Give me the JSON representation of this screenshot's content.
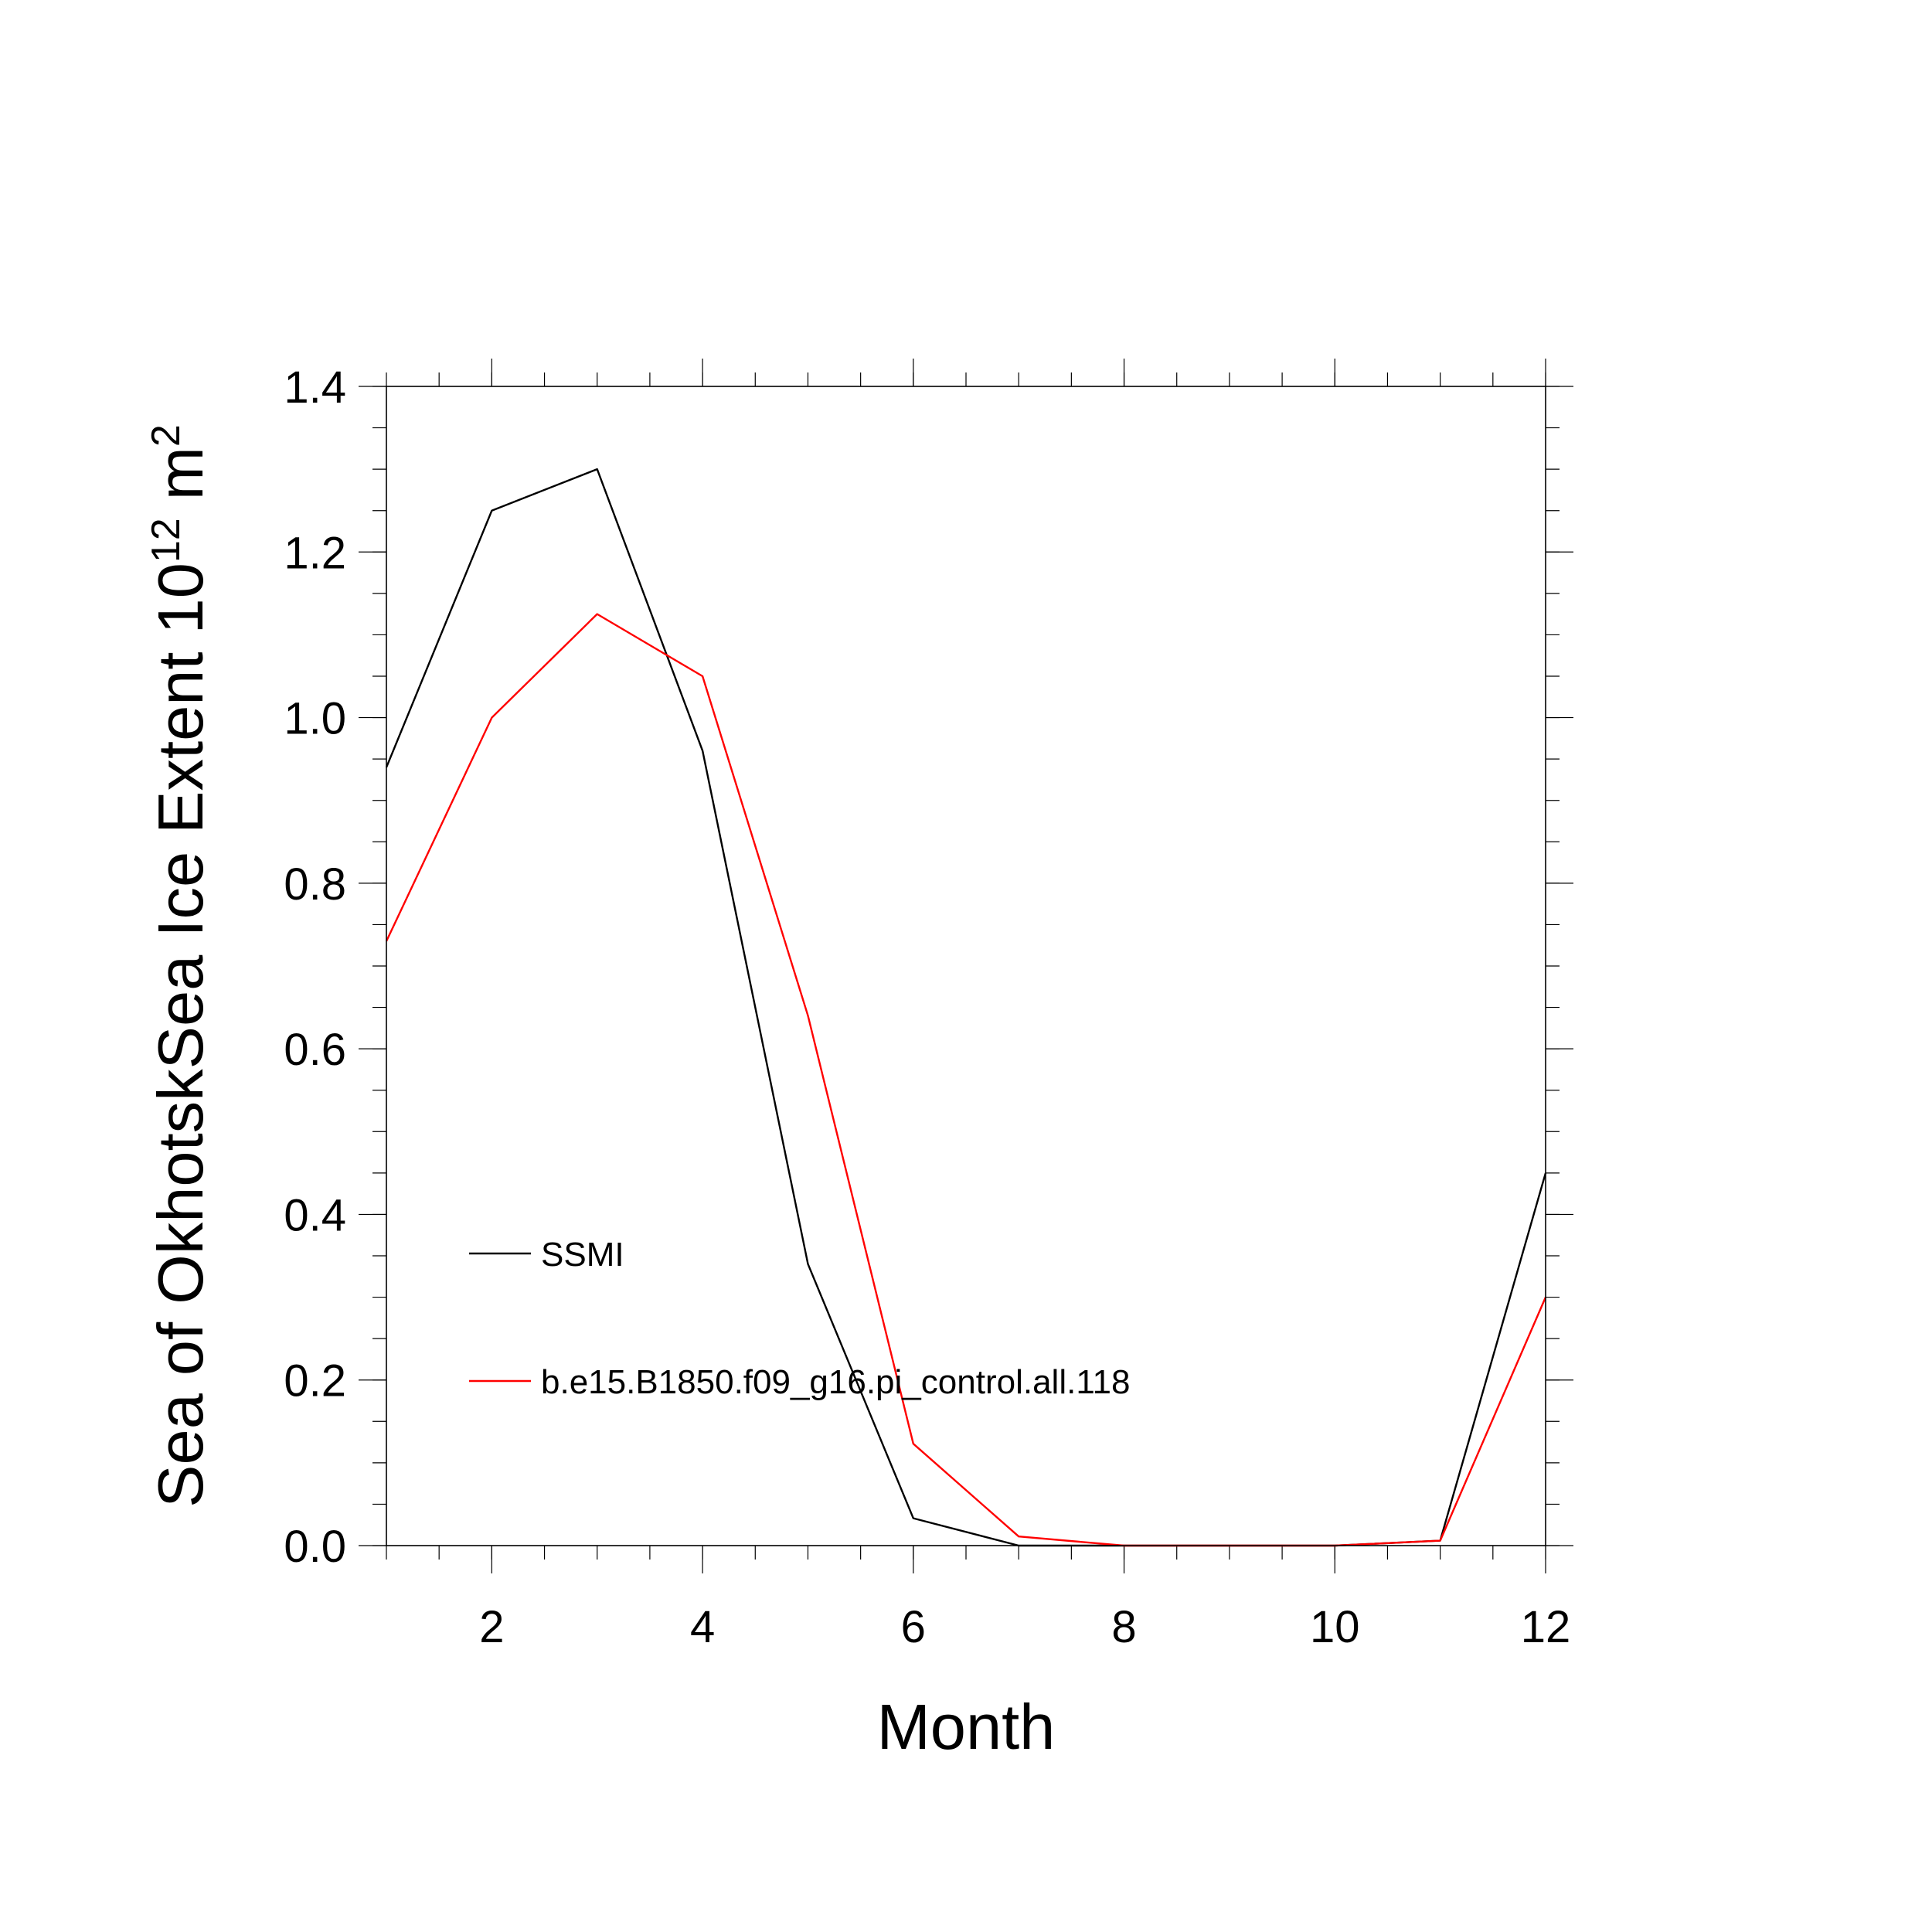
{
  "chart_data": {
    "type": "line",
    "xlabel": "Month",
    "ylabel": {
      "text": "Sea of OkhotskSea Ice Extent 10",
      "superscript": "12",
      "unit": " m",
      "unit_superscript": "2"
    },
    "xlim": [
      1,
      12
    ],
    "ylim": [
      0,
      1.4
    ],
    "x_ticks": [
      2,
      4,
      6,
      8,
      10,
      12
    ],
    "x_tick_labels": [
      "2",
      "4",
      "6",
      "8",
      "10",
      "12"
    ],
    "x_minor_step": 0.5,
    "y_ticks": [
      0.0,
      0.2,
      0.4,
      0.6,
      0.8,
      1.0,
      1.2,
      1.4
    ],
    "y_tick_labels": [
      "0.0",
      "0.2",
      "0.4",
      "0.6",
      "0.8",
      "1.0",
      "1.2",
      "1.4"
    ],
    "y_minor_step": 0.05,
    "grid": false,
    "legend_position": "lower-left",
    "x": [
      1,
      2,
      3,
      4,
      5,
      6,
      7,
      8,
      9,
      10,
      11,
      12
    ],
    "series": [
      {
        "name": "SSMI",
        "color": "#000000",
        "values": [
          0.94,
          1.25,
          1.3,
          0.96,
          0.34,
          0.033,
          0.0,
          0.0,
          0.0,
          0.0,
          0.006,
          0.45
        ]
      },
      {
        "name": "b.e15.B1850.f09_g16.pi_control.all.118",
        "color": "#ff0000",
        "values": [
          0.73,
          1.0,
          1.125,
          1.05,
          0.64,
          0.123,
          0.011,
          0.0,
          0.0,
          0.0,
          0.006,
          0.3
        ]
      }
    ]
  }
}
